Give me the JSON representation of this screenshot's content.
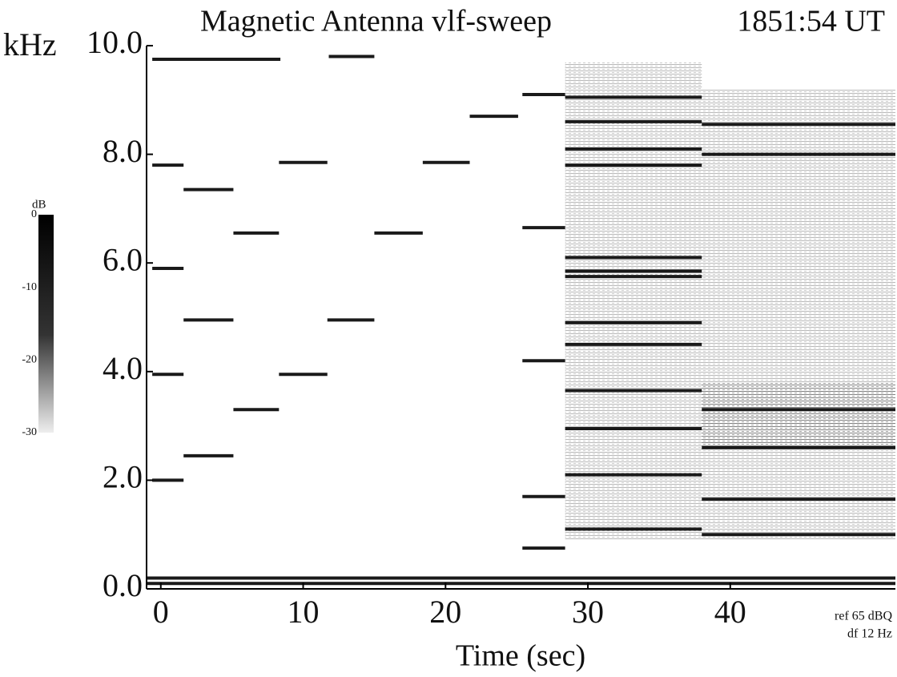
{
  "chart_data": {
    "type": "spectrogram",
    "title": "Magnetic Antenna vlf-sweep",
    "time_label": "1851:54 UT",
    "y_unit": "kHz",
    "xlabel": "Time (sec)",
    "xlim": [
      -1,
      51.6
    ],
    "ylim": [
      0,
      10
    ],
    "xticks": [
      0,
      10,
      20,
      30,
      40
    ],
    "yticks": [
      {
        "value": 0,
        "label": "0.0"
      },
      {
        "value": 2,
        "label": "2.0"
      },
      {
        "value": 4,
        "label": "4.0"
      },
      {
        "value": 6,
        "label": "6.0"
      },
      {
        "value": 8,
        "label": "8.0"
      },
      {
        "value": 10,
        "label": "10.0"
      }
    ],
    "color": "#1a1a1a",
    "tones": {
      "start": [
        -0.6,
        -0.6,
        -0.6,
        -0.6,
        -0.6,
        1.6,
        1.6,
        1.6,
        5.1,
        5.1,
        8.3,
        8.3,
        11.7,
        11.8,
        15,
        18.4,
        21.7,
        25.4,
        25.4,
        25.4,
        25.4,
        25.4,
        28.4,
        28.4,
        28.4,
        28.4,
        28.4,
        28.4,
        28.4,
        28.4,
        28.4,
        28.4,
        28.4,
        28.4,
        28.4,
        38,
        38,
        38,
        38,
        38,
        38,
        -1,
        -1
      ],
      "end": [
        1.6,
        1.6,
        1.6,
        1.6,
        8.4,
        5.1,
        5.1,
        5.1,
        8.3,
        8.3,
        11.7,
        11.7,
        15,
        15,
        18.4,
        21.7,
        25.1,
        28.4,
        28.4,
        28.4,
        28.4,
        28.4,
        38,
        38,
        38,
        38,
        38,
        38,
        38,
        38,
        38,
        38,
        38,
        38,
        38,
        51.6,
        51.6,
        51.6,
        51.6,
        51.6,
        51.6,
        51.6,
        51.6
      ],
      "freq": [
        2.0,
        3.95,
        5.9,
        7.8,
        9.75,
        2.45,
        4.95,
        7.35,
        3.3,
        6.55,
        3.95,
        7.85,
        4.95,
        9.8,
        6.55,
        7.85,
        8.7,
        9.1,
        6.65,
        4.2,
        1.7,
        0.75,
        9.05,
        8.6,
        8.1,
        7.8,
        6.1,
        5.85,
        5.75,
        4.9,
        4.5,
        3.65,
        2.95,
        2.1,
        1.1,
        8.55,
        8.0,
        3.3,
        2.6,
        1.65,
        1.0,
        0.2,
        0.1
      ]
    },
    "noise": {
      "start": [
        28.4,
        38,
        38
      ],
      "end": [
        38,
        51.6,
        51.6
      ],
      "low": [
        0.9,
        0.9,
        2.6
      ],
      "high": [
        9.7,
        9.2,
        3.8
      ]
    },
    "colorbar": {
      "label": "dB",
      "lim": [
        -30,
        0
      ],
      "ticks": [
        0,
        -10,
        -20,
        -30
      ]
    },
    "annotations": [
      "ref 65 dBQ",
      "df 12 Hz"
    ]
  }
}
